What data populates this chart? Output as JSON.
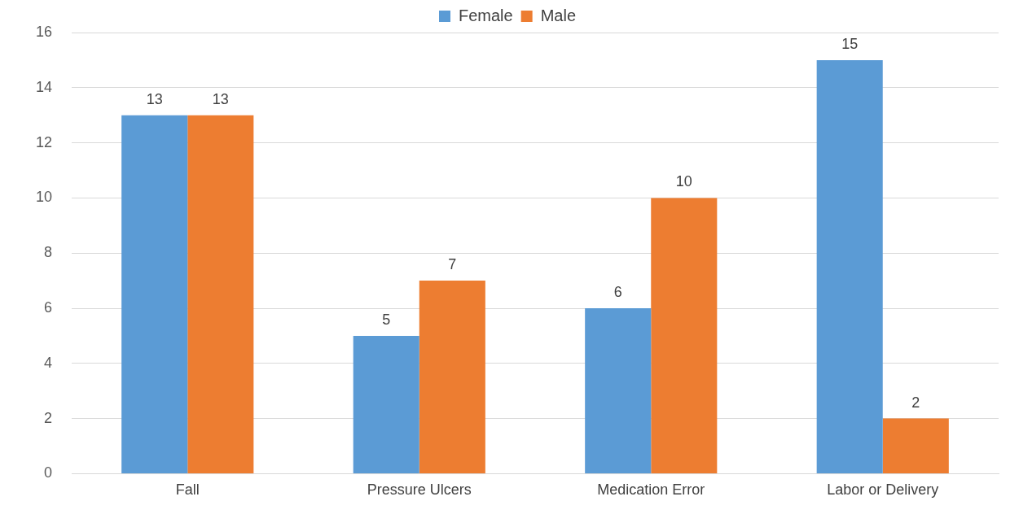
{
  "chart_data": {
    "type": "bar",
    "categories": [
      "Fall",
      "Pressure Ulcers",
      "Medication Error",
      "Labor or Delivery"
    ],
    "series": [
      {
        "name": "Female",
        "color": "#5b9bd5",
        "values": [
          13,
          5,
          6,
          15
        ]
      },
      {
        "name": "Male",
        "color": "#ed7d31",
        "values": [
          13,
          7,
          10,
          2
        ]
      }
    ],
    "ylim": [
      0,
      16
    ],
    "yticks": [
      0,
      2,
      4,
      6,
      8,
      10,
      12,
      14,
      16
    ],
    "grid": "y",
    "legend": "top",
    "data_labels": true
  }
}
